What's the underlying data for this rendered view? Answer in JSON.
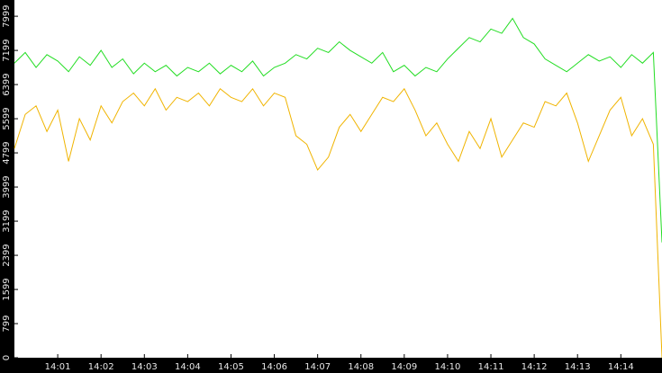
{
  "chart_data": {
    "type": "line",
    "x": [
      0,
      0.25,
      0.5,
      0.75,
      1,
      1.25,
      1.5,
      1.75,
      2,
      2.25,
      2.5,
      2.75,
      3,
      3.25,
      3.5,
      3.75,
      4,
      4.25,
      4.5,
      4.75,
      5,
      5.25,
      5.5,
      5.75,
      6,
      6.25,
      6.5,
      6.75,
      7,
      7.25,
      7.5,
      7.75,
      8,
      8.25,
      8.5,
      8.75,
      9,
      9.25,
      9.5,
      9.75,
      10,
      10.25,
      10.5,
      10.75,
      11,
      11.25,
      11.5,
      11.75,
      12,
      12.25,
      12.5,
      12.75,
      13,
      13.25,
      13.5,
      13.75,
      14,
      14.25,
      14.5,
      14.75,
      14.95
    ],
    "series": [
      {
        "name": "green",
        "color": "#22dd22",
        "values": [
          6900,
          7150,
          6800,
          7100,
          6950,
          6700,
          7050,
          6850,
          7200,
          6800,
          7000,
          6650,
          6900,
          6700,
          6850,
          6600,
          6800,
          6700,
          6900,
          6650,
          6850,
          6700,
          6950,
          6600,
          6800,
          6900,
          7100,
          7000,
          7250,
          7150,
          7400,
          7200,
          7050,
          6900,
          7150,
          6700,
          6850,
          6600,
          6800,
          6700,
          7000,
          7250,
          7500,
          7400,
          7700,
          7600,
          7950,
          7500,
          7350,
          7000,
          6850,
          6700,
          6900,
          7100,
          6950,
          7050,
          6800,
          7100,
          6900,
          7150,
          2700
        ]
      },
      {
        "name": "yellow",
        "color": "#f0b400",
        "values": [
          4900,
          5700,
          5900,
          5300,
          5800,
          4600,
          5600,
          5100,
          5900,
          5500,
          6000,
          6200,
          5900,
          6300,
          5800,
          6100,
          6000,
          6200,
          5900,
          6300,
          6100,
          6000,
          6300,
          5900,
          6200,
          6100,
          5200,
          5000,
          4400,
          4700,
          5400,
          5700,
          5300,
          5700,
          6100,
          6000,
          6300,
          5800,
          5200,
          5500,
          5000,
          4600,
          5300,
          4900,
          5600,
          4700,
          5100,
          5500,
          5400,
          6000,
          5900,
          6200,
          5500,
          4600,
          5200,
          5800,
          6100,
          5200,
          5600,
          5000,
          0
        ]
      }
    ],
    "xlim": [
      0,
      14.95
    ],
    "xticks": [
      {
        "value": 1,
        "label": "14:01"
      },
      {
        "value": 2,
        "label": "14:02"
      },
      {
        "value": 3,
        "label": "14:03"
      },
      {
        "value": 4,
        "label": "14:04"
      },
      {
        "value": 5,
        "label": "14:05"
      },
      {
        "value": 6,
        "label": "14:06"
      },
      {
        "value": 7,
        "label": "14:07"
      },
      {
        "value": 8,
        "label": "14:08"
      },
      {
        "value": 9,
        "label": "14:09"
      },
      {
        "value": 10,
        "label": "14:10"
      },
      {
        "value": 11,
        "label": "14:11"
      },
      {
        "value": 12,
        "label": "14:12"
      },
      {
        "value": 13,
        "label": "14:13"
      },
      {
        "value": 14,
        "label": "14:14"
      }
    ],
    "ylim": [
      0,
      8380
    ],
    "yticks": [
      0,
      799,
      1599,
      2399,
      3199,
      3999,
      4799,
      5599,
      6399,
      7199,
      7999
    ]
  }
}
